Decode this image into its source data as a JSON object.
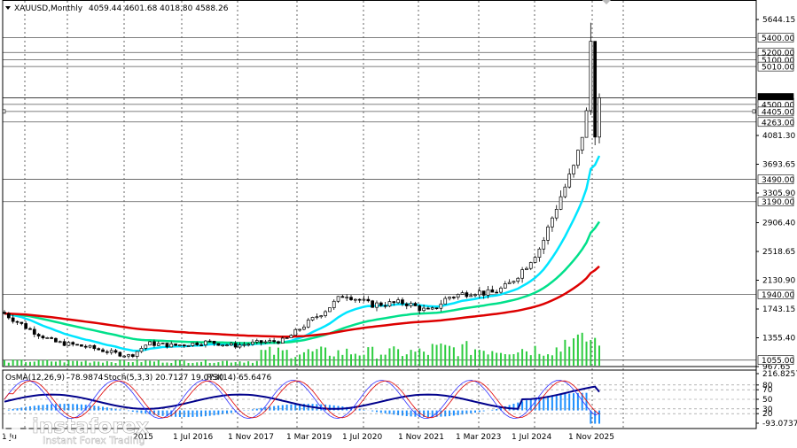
{
  "header": {
    "symbol": "XAUUSD,Monthly",
    "ohlc": "4059.44 4601.68 4018.80 4588.26"
  },
  "indicator_header": {
    "osma": "OsMA(12,26,9) -78.9874",
    "stoch": "Stoch(5,3,3) 20.7127 19.0730",
    "rsi": "RSI(14) 65.6476"
  },
  "price_axis": {
    "ticks": [
      "5644.15",
      "4081.30",
      "3693.65",
      "3305.90",
      "2906.40",
      "2518.65",
      "2130.90",
      "1743.15",
      "1355.40",
      "967.65"
    ],
    "levels": [
      {
        "label": "5400.00",
        "value": 5400
      },
      {
        "label": "5200.00",
        "value": 5200
      },
      {
        "label": "5100.00",
        "value": 5100
      },
      {
        "label": "5010.00",
        "value": 5010
      },
      {
        "label": "4588.26",
        "value": 4588.26,
        "current": true
      },
      {
        "label": "4500.00",
        "value": 4500
      },
      {
        "label": "4405.00",
        "value": 4405
      },
      {
        "label": "4263.00",
        "value": 4263
      },
      {
        "label": "3490.00",
        "value": 3490
      },
      {
        "label": "3190.00",
        "value": 3190
      },
      {
        "label": "1940.00",
        "value": 1940
      },
      {
        "label": "1055.00",
        "value": 1055
      }
    ]
  },
  "indicator_axis": {
    "ticks": [
      "216.8257",
      "80",
      "70",
      "50",
      "30",
      "20",
      "-93.0737"
    ]
  },
  "time_axis": {
    "labels": [
      "1 Jul 2016",
      "1 Nov 2017",
      "1 Mar 2019",
      "1 Jul 2020",
      "1 Nov 2021",
      "1 Mar 2023",
      "1 Jul 2024",
      "1 Nov 2025"
    ],
    "left_fragment": "1 Ju",
    "fragment2": "2015"
  },
  "watermark": {
    "brand": "instaforex",
    "tagline": "Instant Forex Trading"
  },
  "colors": {
    "ema_short": "#00e5ff",
    "ema_mid": "#00e08a",
    "ema_long": "#dd0000",
    "volume": "#2ecc40",
    "osma": "#1e90ff",
    "rsi": "#00008b",
    "stoch_main": "#3030ff",
    "stoch_signal": "#e00000",
    "level_line": "#555555"
  },
  "chart_data": {
    "type": "candlestick",
    "timeframe": "Monthly",
    "symbol": "XAUUSD",
    "last_bar": {
      "open": 4059.44,
      "high": 4601.68,
      "low": 4018.8,
      "close": 4588.26
    },
    "series": [
      {
        "name": "OsMA(12,26,9)",
        "last": -78.9874
      },
      {
        "name": "Stoch(5,3,3)",
        "main": 20.7127,
        "signal": 19.073
      },
      {
        "name": "RSI(14)",
        "last": 65.6476
      }
    ],
    "price_range": [
      967.65,
      5644.15
    ],
    "indicator_range": [
      -93.0737,
      216.8257
    ],
    "horizontal_levels": [
      5400,
      5200,
      5100,
      5010,
      4500,
      4405,
      4263,
      3490,
      3190,
      1940,
      1055
    ]
  }
}
